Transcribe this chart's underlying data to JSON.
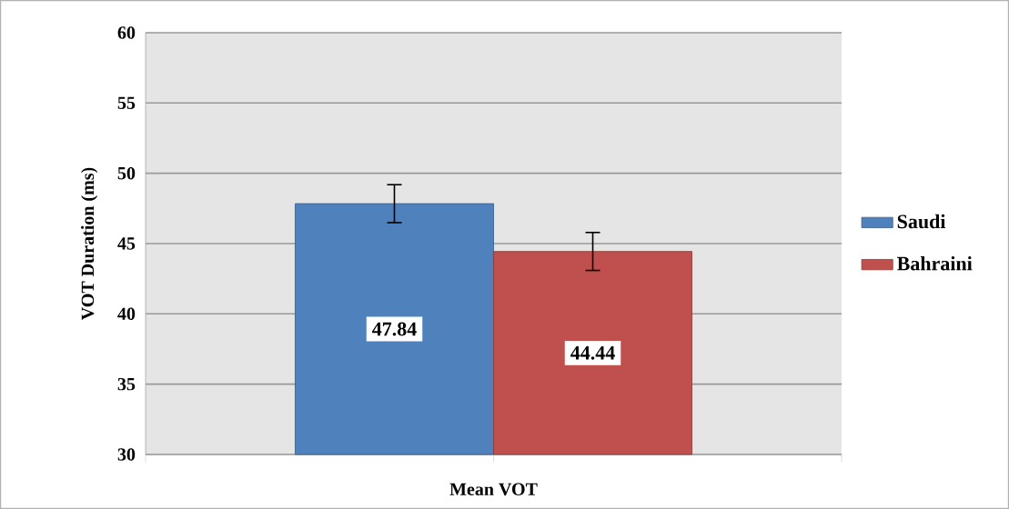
{
  "chart_data": {
    "type": "bar",
    "ylabel": "VOT Duration (ms)",
    "categories": [
      "Mean VOT"
    ],
    "series": [
      {
        "name": "Saudi",
        "color": "#4f81bd",
        "values": [
          47.84
        ],
        "errors": [
          1.35
        ]
      },
      {
        "name": "Bahraini",
        "color": "#c0504d",
        "values": [
          44.44
        ],
        "errors": [
          1.35
        ]
      }
    ],
    "ylim": [
      30,
      60
    ],
    "yticks": [
      30,
      35,
      40,
      45,
      50,
      55,
      60
    ],
    "grid": "y",
    "legend": "right",
    "data_labels": true
  }
}
